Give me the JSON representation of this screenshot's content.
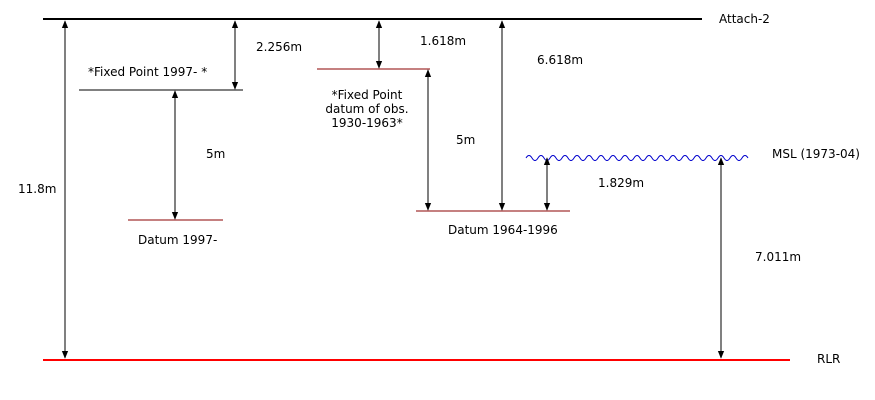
{
  "levels": {
    "attach": "Attach-2",
    "rlr": "RLR",
    "msl": "MSL (1973-04)",
    "fixed_1997": "*Fixed Point 1997- *",
    "datum_1997": "Datum 1997-",
    "fixed_1930_line1": "*Fixed Point",
    "fixed_1930_line2": "datum of obs.",
    "fixed_1930_line3": "1930-1963*",
    "datum_1964": "Datum 1964-1996"
  },
  "distances": {
    "total": "11.8m",
    "attach_to_fixed1997": "2.256m",
    "fixed1997_to_datum1997": "5m",
    "attach_to_fixed1930": "1.618m",
    "fixed1930_to_datum1964": "5m",
    "attach_to_datum1964": "6.618m",
    "datum1964_to_msl": "1.829m",
    "msl_to_rlr": "7.011m"
  },
  "colors": {
    "reference_line": "#000000",
    "datum_line": "#8b0000",
    "rlr_line": "#ff0000",
    "msl_wave": "#0000cc",
    "arrow": "#000000"
  }
}
